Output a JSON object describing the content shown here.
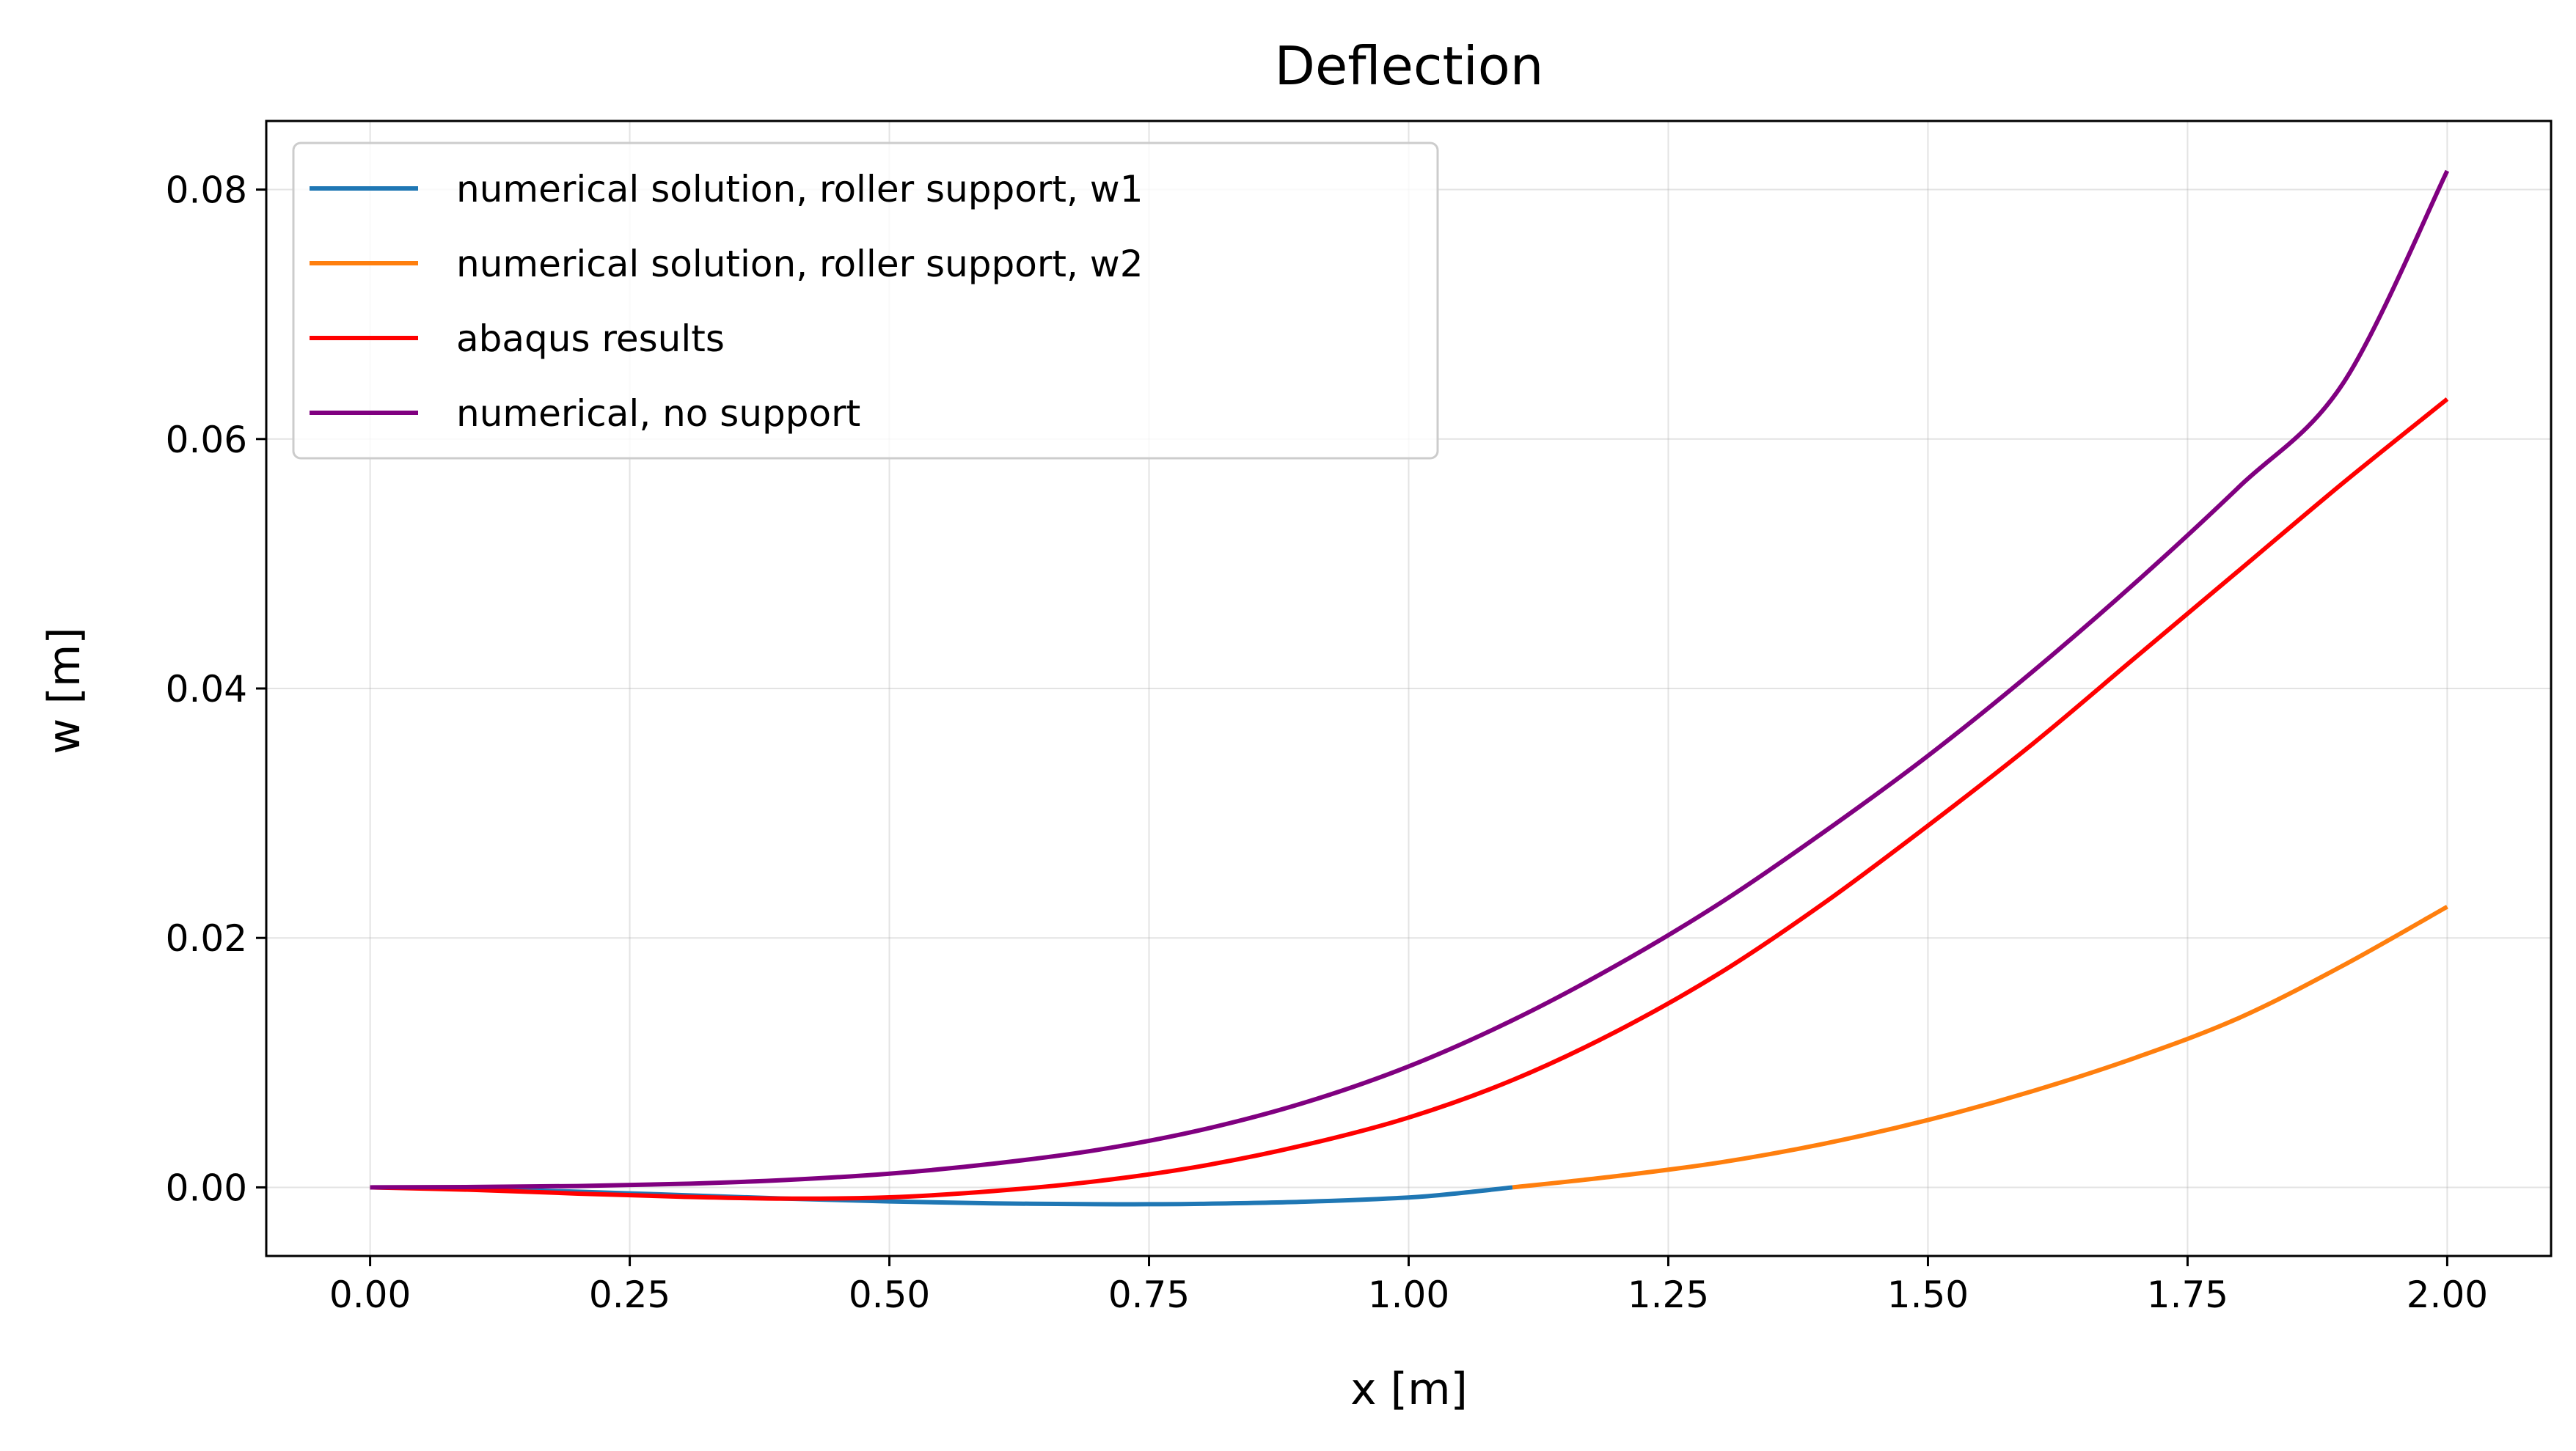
{
  "chart_data": {
    "type": "line",
    "title": "Deflection",
    "xlabel": "x [m]",
    "ylabel": "w [m]",
    "xlim": [
      -0.1,
      2.1
    ],
    "ylim": [
      -0.0055,
      0.0855
    ],
    "grid": true,
    "legend_position": "top-left",
    "xticks": [
      "0.00",
      "0.25",
      "0.50",
      "0.75",
      "1.00",
      "1.25",
      "1.50",
      "1.75",
      "2.00"
    ],
    "yticks": [
      "0.00",
      "0.02",
      "0.04",
      "0.06",
      "0.08"
    ],
    "series": [
      {
        "name": "numerical solution, roller support, w1",
        "color": "#1f77b4",
        "x": [
          0,
          0.1,
          0.2,
          0.3,
          0.4,
          0.5,
          0.6,
          0.7,
          0.75,
          0.8,
          0.9,
          1.0,
          1.05,
          1.1
        ],
        "y": [
          0,
          -0.00012,
          -0.00035,
          -0.00062,
          -0.0009,
          -0.00113,
          -0.00128,
          -0.00135,
          -0.00135,
          -0.00132,
          -0.00115,
          -0.00081,
          -0.00045,
          0
        ]
      },
      {
        "name": "numerical solution, roller support, w2",
        "color": "#ff7f0e",
        "x": [
          1.1,
          1.2,
          1.3,
          1.4,
          1.5,
          1.6,
          1.7,
          1.8,
          1.9,
          2.0
        ],
        "y": [
          0,
          0.0009,
          0.002,
          0.0035,
          0.0054,
          0.0077,
          0.0104,
          0.0136,
          0.0178,
          0.0225
        ]
      },
      {
        "name": "abaqus results",
        "color": "#ff0000",
        "x": [
          0,
          0.1,
          0.2,
          0.3,
          0.4,
          0.5,
          0.6,
          0.7,
          0.8,
          0.9,
          1.0,
          1.1,
          1.2,
          1.3,
          1.4,
          1.5,
          1.6,
          1.7,
          1.8,
          1.9,
          2.0
        ],
        "y": [
          0,
          -0.0002,
          -0.0005,
          -0.00075,
          -0.0009,
          -0.0008,
          -0.0003,
          0.0005,
          0.0017,
          0.0034,
          0.0056,
          0.0086,
          0.0125,
          0.0172,
          0.0228,
          0.029,
          0.0355,
          0.0425,
          0.0495,
          0.0565,
          0.0632
        ]
      },
      {
        "name": "numerical, no support",
        "color": "#800080",
        "x": [
          0,
          0.1,
          0.2,
          0.3,
          0.4,
          0.5,
          0.6,
          0.7,
          0.8,
          0.9,
          1.0,
          1.1,
          1.2,
          1.3,
          1.4,
          1.5,
          1.6,
          1.7,
          1.8,
          1.9,
          2.0
        ],
        "y": [
          0,
          3e-05,
          0.00011,
          0.00028,
          0.00059,
          0.0011,
          0.0019,
          0.003,
          0.0046,
          0.0068,
          0.0097,
          0.0134,
          0.0178,
          0.0228,
          0.0285,
          0.0346,
          0.0413,
          0.0485,
          0.0562,
          0.0645,
          0.0815
        ]
      }
    ]
  }
}
